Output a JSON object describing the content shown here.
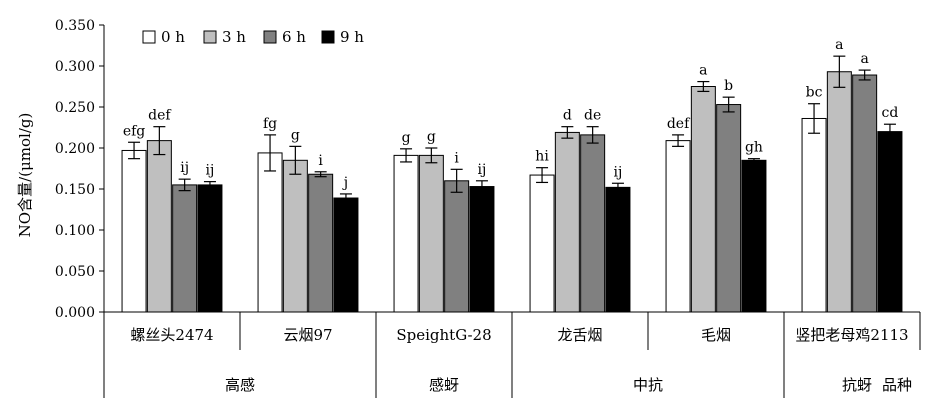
{
  "chart_data": {
    "type": "bar",
    "ylabel": "NO含量/(μmol/g)",
    "ylim": [
      0,
      0.35
    ],
    "yticks": [
      "0.000",
      "0.050",
      "0.100",
      "0.150",
      "0.200",
      "0.250",
      "0.300",
      "0.350"
    ],
    "legend": {
      "placement": "top-left"
    },
    "grid": false,
    "categories": [
      "螺丝头2474",
      "云烟97",
      "SpeightG-28",
      "龙舌烟",
      "毛烟",
      "竖把老母鸡2113"
    ],
    "groups": [
      {
        "label": "高感",
        "categories": [
          "螺丝头2474",
          "云烟97"
        ]
      },
      {
        "label": "感蚜",
        "categories": [
          "SpeightG-28"
        ]
      },
      {
        "label": "中抗",
        "categories": [
          "龙舌烟",
          "毛烟"
        ]
      },
      {
        "label": "抗蚜",
        "categories": [
          "竖把老母鸡2113"
        ]
      }
    ],
    "footer_label": "品种",
    "series": [
      {
        "name": "0 h",
        "color": "#ffffff",
        "values": [
          0.197,
          0.194,
          0.191,
          0.167,
          0.209,
          0.236
        ],
        "errors": [
          0.01,
          0.022,
          0.008,
          0.009,
          0.007,
          0.018
        ],
        "letters": [
          "efg",
          "fg",
          "g",
          "hi",
          "def",
          "bc"
        ]
      },
      {
        "name": "3 h",
        "color": "#bfbfbf",
        "values": [
          0.209,
          0.185,
          0.191,
          0.219,
          0.275,
          0.293
        ],
        "errors": [
          0.017,
          0.017,
          0.009,
          0.007,
          0.006,
          0.019
        ],
        "letters": [
          "def",
          "g",
          "g",
          "d",
          "a",
          "a"
        ]
      },
      {
        "name": "6 h",
        "color": "#808080",
        "values": [
          0.155,
          0.168,
          0.16,
          0.216,
          0.253,
          0.289
        ],
        "errors": [
          0.007,
          0.003,
          0.014,
          0.01,
          0.009,
          0.006
        ],
        "letters": [
          "ij",
          "i",
          "i",
          "de",
          "b",
          "a"
        ]
      },
      {
        "name": "9 h",
        "color": "#000000",
        "values": [
          0.155,
          0.139,
          0.153,
          0.152,
          0.185,
          0.22
        ],
        "errors": [
          0.004,
          0.005,
          0.007,
          0.005,
          0.002,
          0.009
        ],
        "letters": [
          "ij",
          "j",
          "ij",
          "ij",
          "gh",
          "cd"
        ]
      }
    ]
  }
}
